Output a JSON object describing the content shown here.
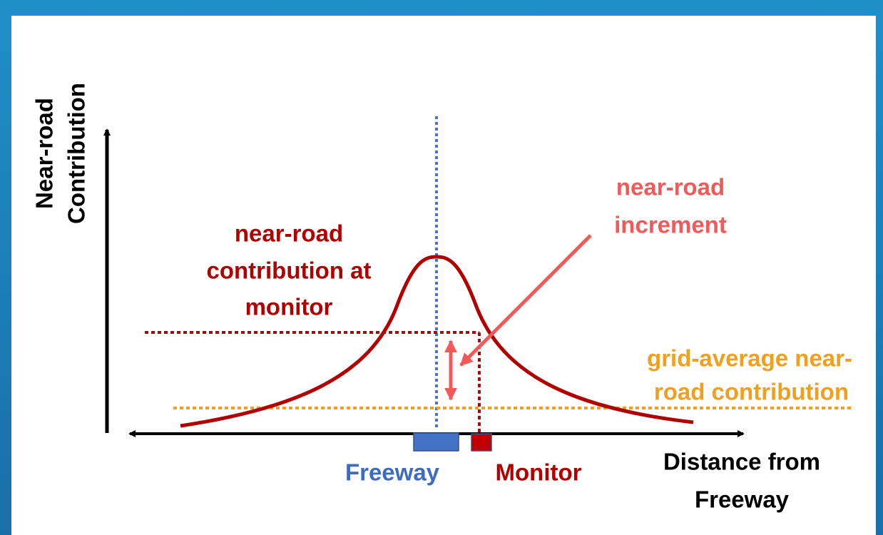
{
  "y_axis_label": [
    "Near-road",
    "Contribution"
  ],
  "x_axis_label": [
    "Distance from",
    "Freeway"
  ],
  "labels": {
    "contribution_at_monitor": [
      "near-road",
      "contribution at",
      "monitor"
    ],
    "increment": [
      "near-road",
      "increment"
    ],
    "grid_average": [
      "grid-average near-",
      "road contribution"
    ],
    "freeway": "Freeway",
    "monitor": "Monitor"
  }
}
